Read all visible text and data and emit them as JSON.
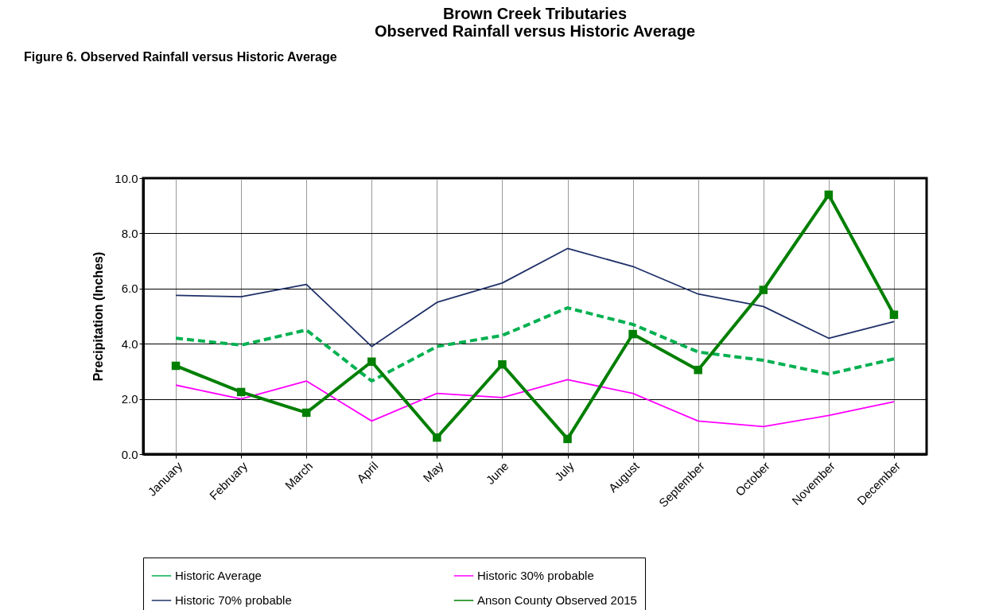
{
  "chart_data": {
    "type": "line",
    "title": "Brown Creek Tributaries\nObserved Rainfall versus Historic Average",
    "ylabel": "Precipitation (Inches)",
    "annotations": [
      "Figure 6.  Observed Rainfall versus Historic Average"
    ],
    "categories": [
      "January",
      "February",
      "March",
      "April",
      "May",
      "June",
      "July",
      "August",
      "September",
      "October",
      "November",
      "December"
    ],
    "series": [
      {
        "name": "Historic Average",
        "color": "#00b050",
        "line_style": "dashed",
        "marker": "none",
        "values": [
          4.2,
          3.95,
          4.5,
          2.65,
          3.9,
          4.3,
          5.3,
          4.7,
          3.7,
          3.4,
          2.9,
          3.45
        ]
      },
      {
        "name": "Historic 30% probable",
        "color": "#ff00ff",
        "line_style": "solid",
        "marker": "none",
        "values": [
          2.5,
          2.0,
          2.65,
          1.2,
          2.2,
          2.05,
          2.7,
          2.2,
          1.2,
          1.0,
          1.4,
          1.9
        ]
      },
      {
        "name": "Historic 70% probable",
        "color": "#1f3068",
        "line_style": "solid",
        "marker": "none",
        "values": [
          5.75,
          5.7,
          6.15,
          3.9,
          5.5,
          6.2,
          7.45,
          6.8,
          5.8,
          5.35,
          4.2,
          4.8
        ]
      },
      {
        "name": "Anson County Observed 2015",
        "color": "#007f00",
        "line_style": "solid",
        "marker": "square",
        "values": [
          3.2,
          2.25,
          1.5,
          3.35,
          0.6,
          3.25,
          0.55,
          4.35,
          3.05,
          5.95,
          9.4,
          5.05
        ]
      }
    ],
    "ylim": [
      0,
      10
    ],
    "yticks": [
      {
        "value": 0,
        "label": "0.0"
      },
      {
        "value": 2,
        "label": "2.0"
      },
      {
        "value": 4,
        "label": "4.0"
      },
      {
        "value": 6,
        "label": "6.0"
      },
      {
        "value": 8,
        "label": "8.0"
      },
      {
        "value": 10,
        "label": "10.0"
      }
    ],
    "grid": true,
    "legend": "bottom"
  }
}
